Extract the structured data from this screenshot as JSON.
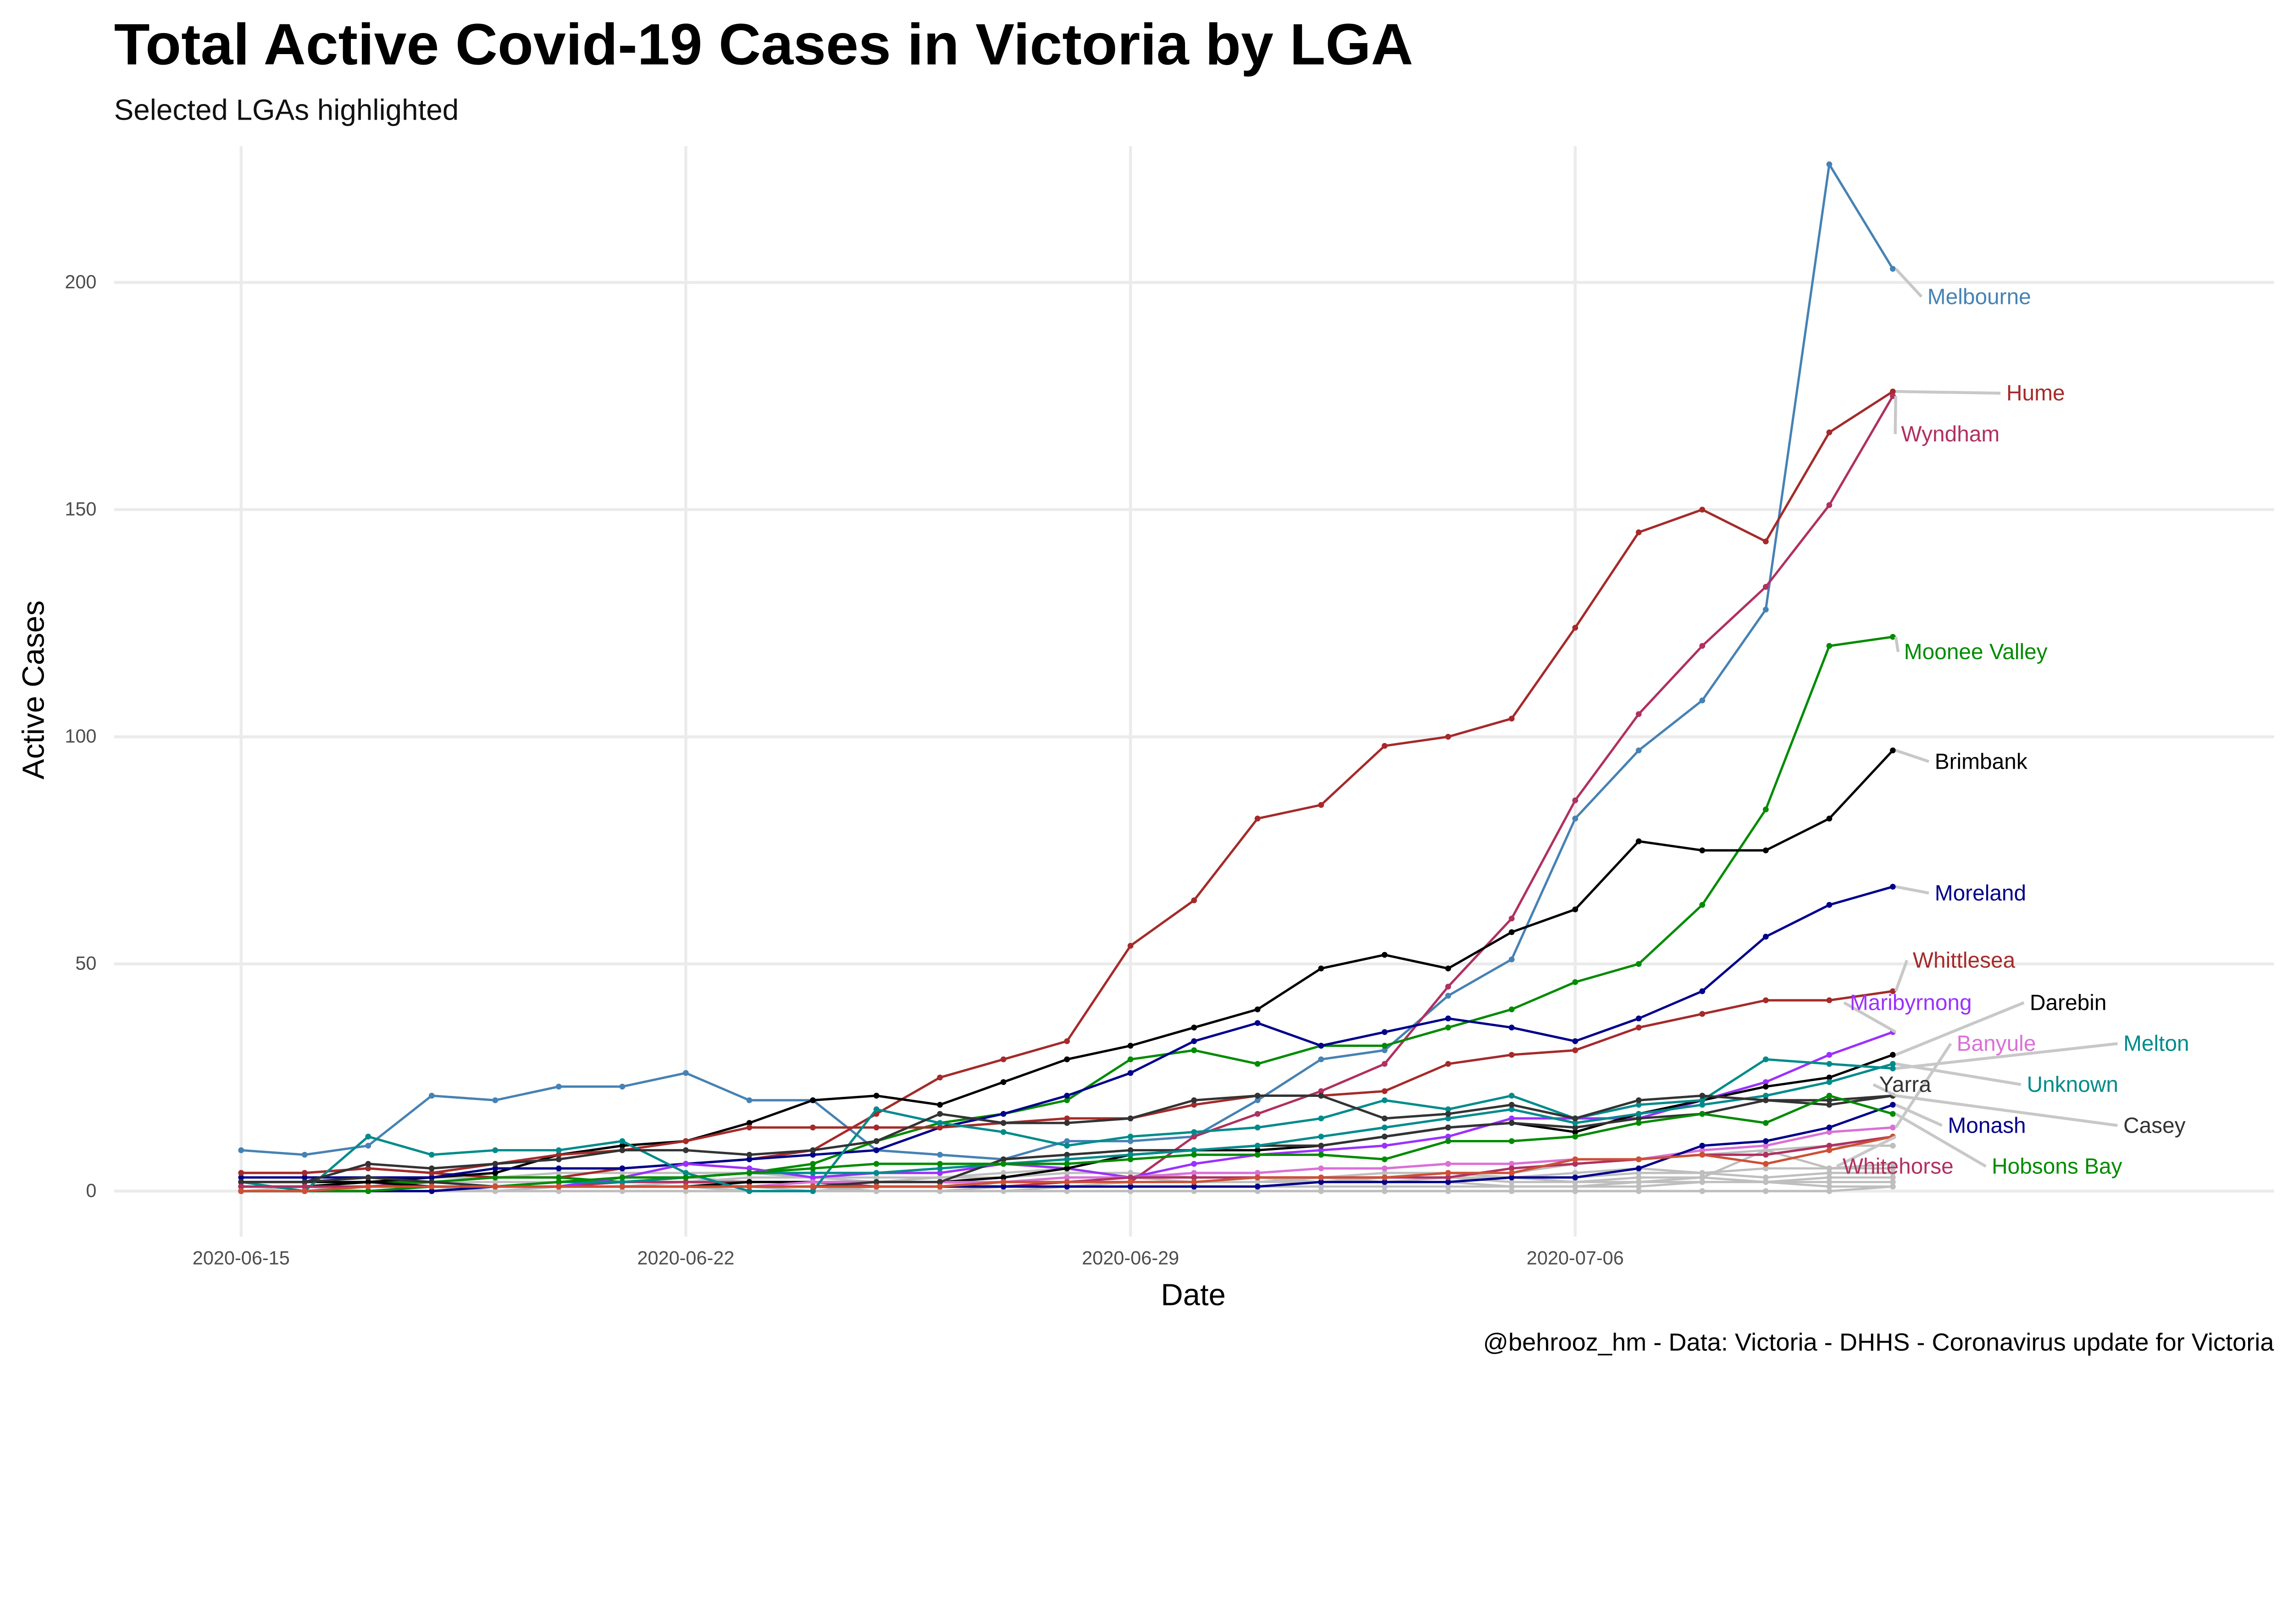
{
  "chart_data": {
    "type": "line",
    "title": "Total Active Covid-19 Cases in Victoria by LGA",
    "subtitle": "Selected LGAs highlighted",
    "xlabel": "Date",
    "ylabel": "Active Cases",
    "caption": "@behrooz_hm - Data: Victoria - DHHS - Coronavirus update for Victoria",
    "x_ticks": [
      "2020-06-15",
      "2020-06-22",
      "2020-06-29",
      "2020-07-06"
    ],
    "y_ticks": [
      0,
      50,
      100,
      150,
      200
    ],
    "xlim": [
      "2020-06-13",
      "2020-07-17"
    ],
    "ylim": [
      -10,
      230
    ],
    "grid": true,
    "legend": "none",
    "dates": [
      "2020-06-15",
      "2020-06-16",
      "2020-06-17",
      "2020-06-18",
      "2020-06-19",
      "2020-06-20",
      "2020-06-21",
      "2020-06-22",
      "2020-06-23",
      "2020-06-24",
      "2020-06-25",
      "2020-06-26",
      "2020-06-27",
      "2020-06-28",
      "2020-06-29",
      "2020-06-30",
      "2020-07-01",
      "2020-07-02",
      "2020-07-03",
      "2020-07-04",
      "2020-07-05",
      "2020-07-06",
      "2020-07-07",
      "2020-07-08",
      "2020-07-09",
      "2020-07-10",
      "2020-07-11"
    ],
    "background_color": "#BEBEBE",
    "background_series": [
      [
        0,
        0,
        1,
        1,
        0,
        1,
        1,
        2,
        1,
        0,
        1,
        1,
        2,
        2,
        3,
        2,
        2,
        3,
        3,
        4,
        3,
        4,
        5,
        4,
        5,
        5,
        6
      ],
      [
        1,
        1,
        0,
        0,
        1,
        1,
        2,
        2,
        3,
        3,
        2,
        2,
        1,
        1,
        2,
        2,
        3,
        3,
        2,
        2,
        3,
        3,
        4,
        4,
        3,
        4,
        4
      ],
      [
        0,
        1,
        1,
        2,
        2,
        2,
        3,
        3,
        2,
        2,
        2,
        3,
        3,
        4,
        4,
        3,
        3,
        2,
        2,
        3,
        3,
        2,
        3,
        3,
        2,
        3,
        3
      ],
      [
        0,
        0,
        0,
        0,
        0,
        1,
        1,
        1,
        1,
        1,
        0,
        0,
        0,
        1,
        1,
        1,
        1,
        2,
        2,
        2,
        1,
        1,
        1,
        2,
        2,
        2,
        2
      ],
      [
        2,
        2,
        2,
        3,
        3,
        4,
        4,
        4,
        4,
        3,
        3,
        3,
        4,
        5,
        3,
        2,
        2,
        2,
        3,
        3,
        2,
        2,
        2,
        3,
        9,
        5,
        5
      ],
      [
        0,
        0,
        0,
        0,
        0,
        0,
        0,
        0,
        0,
        0,
        0,
        0,
        0,
        0,
        0,
        0,
        0,
        0,
        0,
        0,
        0,
        0,
        0,
        0,
        0,
        0,
        1
      ],
      [
        1,
        1,
        1,
        1,
        1,
        1,
        1,
        1,
        0,
        0,
        0,
        0,
        1,
        1,
        1,
        1,
        1,
        1,
        1,
        1,
        1,
        1,
        2,
        2,
        2,
        1,
        1
      ],
      [
        0,
        0,
        1,
        1,
        1,
        2,
        2,
        2,
        2,
        2,
        2,
        2,
        2,
        3,
        3,
        3,
        3,
        3,
        4,
        4,
        4,
        6,
        7,
        8,
        9,
        10,
        10
      ]
    ],
    "series": [
      {
        "name": "Melbourne",
        "color": "#4682B4",
        "values": [
          9,
          8,
          10,
          21,
          20,
          23,
          23,
          26,
          20,
          20,
          9,
          8,
          7,
          11,
          11,
          12,
          20,
          29,
          31,
          43,
          51,
          82,
          97,
          108,
          128,
          226,
          203
        ]
      },
      {
        "name": "Hume",
        "color": "#A52A2A",
        "values": [
          4,
          4,
          5,
          4,
          3,
          3,
          5,
          6,
          7,
          9,
          17,
          25,
          29,
          33,
          54,
          64,
          82,
          85,
          98,
          100,
          104,
          124,
          145,
          150,
          143,
          167,
          176
        ]
      },
      {
        "name": "Wyndham",
        "color": "#B03060",
        "values": [
          1,
          1,
          1,
          2,
          1,
          1,
          2,
          2,
          2,
          2,
          1,
          1,
          1,
          2,
          2,
          12,
          17,
          22,
          28,
          45,
          60,
          86,
          105,
          120,
          133,
          151,
          175
        ]
      },
      {
        "name": "Moonee Valley",
        "color": "#008B00",
        "values": [
          1,
          1,
          2,
          2,
          3,
          3,
          2,
          3,
          4,
          6,
          11,
          15,
          17,
          20,
          29,
          31,
          28,
          32,
          32,
          36,
          40,
          46,
          50,
          63,
          84,
          120,
          122
        ]
      },
      {
        "name": "Brimbank",
        "color": "#000000",
        "values": [
          2,
          2,
          2,
          3,
          4,
          8,
          10,
          11,
          15,
          20,
          21,
          19,
          24,
          29,
          32,
          36,
          40,
          49,
          52,
          49,
          57,
          62,
          77,
          75,
          75,
          82,
          97
        ]
      },
      {
        "name": "Moreland",
        "color": "#00008B",
        "values": [
          3,
          3,
          3,
          3,
          5,
          5,
          5,
          6,
          7,
          8,
          9,
          14,
          17,
          21,
          26,
          33,
          37,
          32,
          35,
          38,
          36,
          33,
          38,
          44,
          56,
          63,
          67
        ]
      },
      {
        "name": "Whittlesea",
        "color": "#A52A2A",
        "values": [
          4,
          4,
          5,
          4,
          6,
          8,
          9,
          11,
          14,
          14,
          14,
          14,
          15,
          16,
          16,
          19,
          21,
          21,
          22,
          28,
          30,
          31,
          36,
          39,
          42,
          42,
          44
        ]
      },
      {
        "name": "Maribyrnong",
        "color": "#9B30FF",
        "values": [
          1,
          1,
          1,
          1,
          1,
          1,
          3,
          6,
          5,
          3,
          4,
          4,
          6,
          5,
          3,
          6,
          8,
          9,
          10,
          12,
          16,
          16,
          16,
          20,
          24,
          30,
          35
        ]
      },
      {
        "name": "Darebin",
        "color": "#000000",
        "values": [
          1,
          1,
          2,
          1,
          1,
          1,
          1,
          1,
          2,
          2,
          2,
          2,
          3,
          5,
          8,
          9,
          9,
          10,
          12,
          14,
          15,
          13,
          17,
          20,
          23,
          25,
          30
        ]
      },
      {
        "name": "Banyule",
        "color": "#DA70D6",
        "values": [
          0,
          0,
          0,
          0,
          1,
          1,
          1,
          1,
          1,
          2,
          2,
          2,
          2,
          3,
          3,
          4,
          4,
          5,
          5,
          6,
          6,
          7,
          7,
          9,
          10,
          13,
          14
        ]
      },
      {
        "name": "Melton",
        "color": "#008B8B",
        "values": [
          2,
          0,
          12,
          8,
          9,
          9,
          11,
          4,
          0,
          0,
          18,
          15,
          13,
          10,
          12,
          13,
          14,
          16,
          20,
          18,
          21,
          16,
          19,
          20,
          29,
          28,
          27
        ]
      },
      {
        "name": "Yarra",
        "color": "#333333",
        "values": [
          2,
          2,
          3,
          2,
          1,
          1,
          1,
          1,
          1,
          1,
          2,
          2,
          7,
          8,
          9,
          9,
          10,
          10,
          12,
          14,
          15,
          14,
          16,
          17,
          20,
          20,
          21
        ]
      },
      {
        "name": "Unknown",
        "color": "#008B8B",
        "values": [
          0,
          0,
          0,
          1,
          1,
          2,
          2,
          3,
          4,
          4,
          4,
          5,
          6,
          7,
          8,
          9,
          10,
          12,
          14,
          16,
          18,
          15,
          17,
          19,
          21,
          24,
          28
        ]
      },
      {
        "name": "Monash",
        "color": "#00008B",
        "values": [
          0,
          0,
          0,
          0,
          1,
          1,
          1,
          1,
          1,
          1,
          1,
          1,
          1,
          1,
          1,
          1,
          1,
          2,
          2,
          2,
          3,
          3,
          5,
          10,
          11,
          14,
          19
        ]
      },
      {
        "name": "Casey",
        "color": "#333333",
        "values": [
          2,
          2,
          6,
          5,
          6,
          7,
          9,
          9,
          8,
          9,
          11,
          17,
          15,
          15,
          16,
          20,
          21,
          21,
          16,
          17,
          19,
          16,
          20,
          21,
          20,
          19,
          21
        ]
      },
      {
        "name": "Hobsons Bay",
        "color": "#008B00",
        "values": [
          0,
          0,
          0,
          1,
          1,
          2,
          3,
          3,
          4,
          5,
          6,
          6,
          6,
          6,
          7,
          8,
          8,
          8,
          7,
          11,
          11,
          12,
          15,
          17,
          15,
          21,
          17
        ]
      },
      {
        "name": "Whitehorse",
        "color": "#B03060",
        "values": [
          1,
          1,
          1,
          1,
          1,
          1,
          1,
          1,
          1,
          1,
          1,
          1,
          2,
          2,
          3,
          3,
          3,
          3,
          3,
          3,
          5,
          6,
          7,
          8,
          8,
          10,
          12
        ]
      },
      {
        "color": "#CD5035",
        "values": [
          0,
          0,
          1,
          1,
          1,
          1,
          1,
          1,
          1,
          1,
          1,
          1,
          2,
          2,
          2,
          2,
          3,
          3,
          3,
          4,
          4,
          7,
          7,
          8,
          6,
          9,
          12
        ]
      }
    ]
  }
}
